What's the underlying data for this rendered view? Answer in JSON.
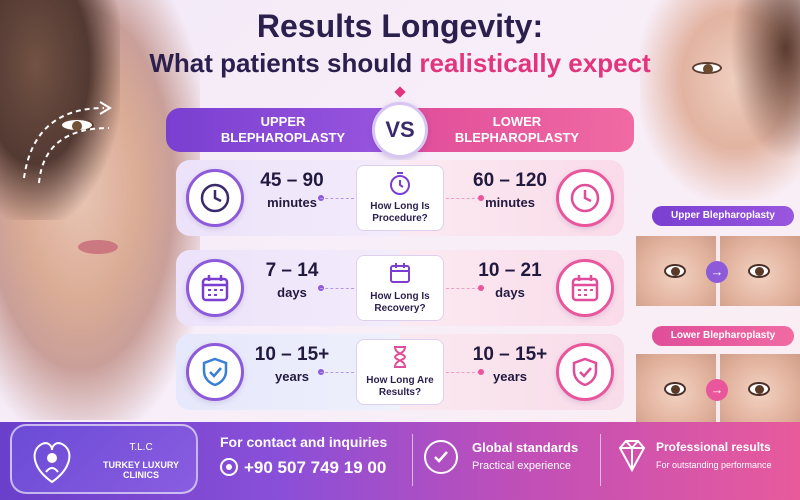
{
  "title": {
    "line1": "Results Longevity:",
    "line2_prefix": "What patients should ",
    "line2_accent": "realistically expect"
  },
  "columns": {
    "left_line1": "UPPER",
    "left_line2": "BLEPHAROPLASTY",
    "vs": "VS",
    "right_line1": "LOWER",
    "right_line2": "BLEPHAROPLASTY"
  },
  "rows": [
    {
      "left_value": "45 – 90",
      "left_unit": "minutes",
      "question_line1": "How Long Is",
      "question_line2": "Procedure?",
      "right_value": "60 – 120",
      "right_unit": "minutes",
      "icon": "clock-icon"
    },
    {
      "left_value": "7 – 14",
      "left_unit": "days",
      "question_line1": "How Long Is",
      "question_line2": "Recovery?",
      "right_value": "10 – 21",
      "right_unit": "days",
      "icon": "calendar-icon"
    },
    {
      "left_value": "10 – 15+",
      "left_unit": "years",
      "question_line1": "How Long Are",
      "question_line2": "Results?",
      "right_value": "10 – 15+",
      "right_unit": "years",
      "icon": "shield-icon"
    }
  ],
  "side": {
    "upper_label": "Upper Blepharoplasty",
    "lower_label": "Lower Blepharoplasty",
    "arrow": "→"
  },
  "footer": {
    "brand_tlc": "T.L.C",
    "brand_name": "TURKEY LUXURY CLINICS",
    "contact_title": "For contact and inquiries",
    "phone": "+90 507 749 19 00",
    "global_title": "Global standards",
    "global_sub": "Practical experience",
    "pro_title": "Professional results",
    "pro_sub": "For outstanding performance"
  },
  "colors": {
    "purple": "#8d5ad9",
    "pink": "#e9569c",
    "navy": "#2b1f4e"
  }
}
